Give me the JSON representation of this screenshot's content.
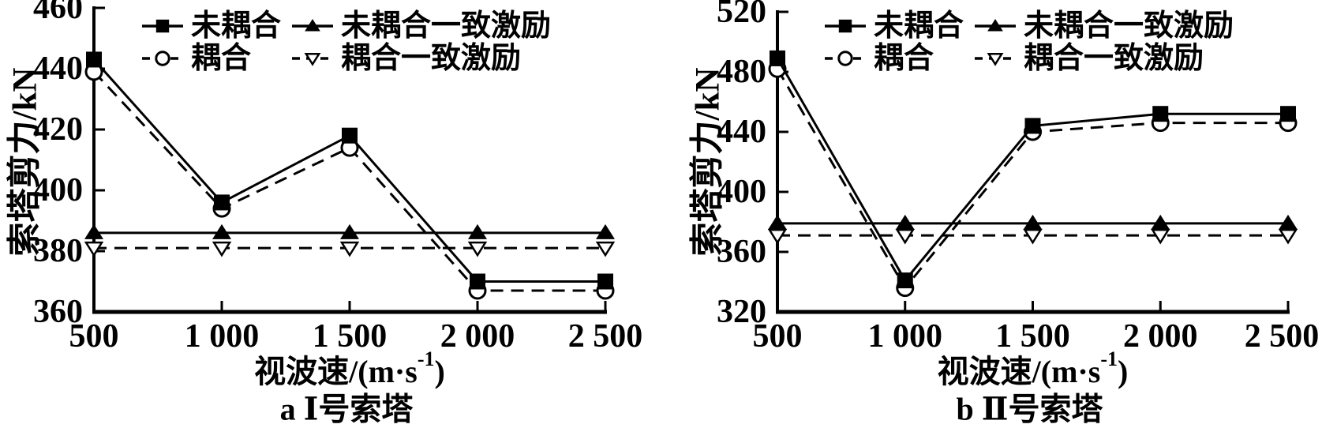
{
  "figure": {
    "background": "#ffffff",
    "foreground": "#000000",
    "description_labels": {
      "y_axis_title": "索塔剪力/kN",
      "x_axis_title": "视波速/(m·s⁻¹)"
    }
  },
  "chart_data": [
    {
      "id": "a",
      "type": "line",
      "title": "a Ⅰ号索塔",
      "caption": "a Ⅰ号索塔",
      "xlabel": "视波速/(m·s⁻¹)",
      "xlabel_parts": {
        "base": "视波速/(m·s",
        "sup": "-1",
        "close": ")"
      },
      "ylabel": "索塔剪力/kN",
      "x": [
        500,
        1000,
        1500,
        2000,
        2500
      ],
      "x_tick_labels": [
        "500",
        "1 000",
        "1 500",
        "2 000",
        "2 500"
      ],
      "xlim": [
        500,
        2500
      ],
      "ylim": [
        360,
        460
      ],
      "y_tick_step": 20,
      "y_tick_labels": [
        "360",
        "380",
        "400",
        "420",
        "440",
        "460"
      ],
      "grid": false,
      "legend_position": "top-inside",
      "series": [
        {
          "name": "未耦合",
          "line": "solid",
          "marker": "filled-square",
          "values": [
            443,
            396,
            418,
            370,
            370
          ]
        },
        {
          "name": "未耦合一致激励",
          "line": "solid",
          "marker": "filled-triangle-up",
          "values": [
            386,
            386,
            386,
            386,
            386
          ]
        },
        {
          "name": "耦合",
          "line": "dashed",
          "marker": "open-circle",
          "values": [
            439,
            394,
            414,
            367,
            367
          ]
        },
        {
          "name": "耦合一致激励",
          "line": "dashed",
          "marker": "open-triangle-down",
          "values": [
            381,
            381,
            381,
            381,
            381
          ]
        }
      ]
    },
    {
      "id": "b",
      "type": "line",
      "title": "b Ⅱ号索塔",
      "caption": "b Ⅱ号索塔",
      "xlabel": "视波速/(m·s⁻¹)",
      "xlabel_parts": {
        "base": "视波速/(m·s",
        "sup": "-1",
        "close": ")"
      },
      "ylabel": "索塔剪力/kN",
      "x": [
        500,
        1000,
        1500,
        2000,
        2500
      ],
      "x_tick_labels": [
        "500",
        "1 000",
        "1 500",
        "2 000",
        "2 500"
      ],
      "xlim": [
        500,
        2500
      ],
      "ylim": [
        320,
        520
      ],
      "y_tick_step": 40,
      "y_tick_labels": [
        "320",
        "360",
        "400",
        "440",
        "480",
        "520"
      ],
      "grid": false,
      "legend_position": "top-inside",
      "series": [
        {
          "name": "未耦合",
          "line": "solid",
          "marker": "filled-square",
          "values": [
            489,
            341,
            444,
            452,
            452
          ]
        },
        {
          "name": "未耦合一致激励",
          "line": "solid",
          "marker": "filled-triangle-up",
          "values": [
            379,
            379,
            379,
            379,
            379
          ]
        },
        {
          "name": "耦合",
          "line": "dashed",
          "marker": "open-circle",
          "values": [
            482,
            336,
            440,
            446,
            446
          ]
        },
        {
          "name": "耦合一致激励",
          "line": "dashed",
          "marker": "open-triangle-down",
          "values": [
            371,
            371,
            371,
            371,
            371
          ]
        }
      ]
    }
  ],
  "legend": {
    "entries": [
      {
        "label": "未耦合",
        "marker": "filled-square",
        "line": "solid"
      },
      {
        "label": "未耦合一致激励",
        "marker": "filled-triangle-up",
        "line": "solid"
      },
      {
        "label": "耦合",
        "marker": "open-circle",
        "line": "dashed"
      },
      {
        "label": "耦合一致激励",
        "marker": "open-triangle-down",
        "line": "dashed"
      }
    ]
  }
}
